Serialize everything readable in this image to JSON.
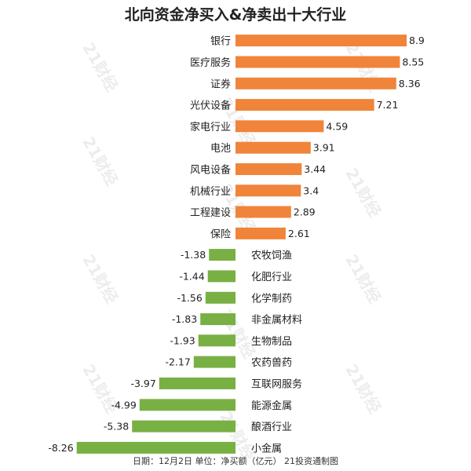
{
  "chart_data": {
    "type": "bar",
    "orientation": "horizontal",
    "title": "北向资金净买入&净卖出十大行业",
    "footer": "日期：12月2日  单位：净买额（亿元）  21投资通制图",
    "watermark": "21财经",
    "colors": {
      "positive": "#F0843A",
      "negative": "#78B043"
    },
    "categories": [
      "银行",
      "医疗服务",
      "证券",
      "光伏设备",
      "家电行业",
      "电池",
      "风电设备",
      "机械行业",
      "工程建设",
      "保险",
      "农牧饲渔",
      "化肥行业",
      "化学制药",
      "非金属材料",
      "生物制品",
      "农药兽药",
      "互联网服务",
      "能源金属",
      "酿酒行业",
      "小金属"
    ],
    "values": [
      8.9,
      8.55,
      8.36,
      7.21,
      4.59,
      3.91,
      3.44,
      3.4,
      2.89,
      2.61,
      -1.38,
      -1.44,
      -1.56,
      -1.83,
      -1.93,
      -2.17,
      -3.97,
      -4.99,
      -5.38,
      -8.26
    ],
    "value_labels": [
      "8.9",
      "8.55",
      "8.36",
      "7.21",
      "4.59",
      "3.91",
      "3.44",
      "3.4",
      "2.89",
      "2.61",
      "-1.38",
      "-1.44",
      "-1.56",
      "-1.83",
      "-1.93",
      "-2.17",
      "-3.97",
      "-4.99",
      "-5.38",
      "-8.26"
    ],
    "xlim": [
      -8.26,
      8.9
    ],
    "grid": false,
    "legend": "none"
  }
}
